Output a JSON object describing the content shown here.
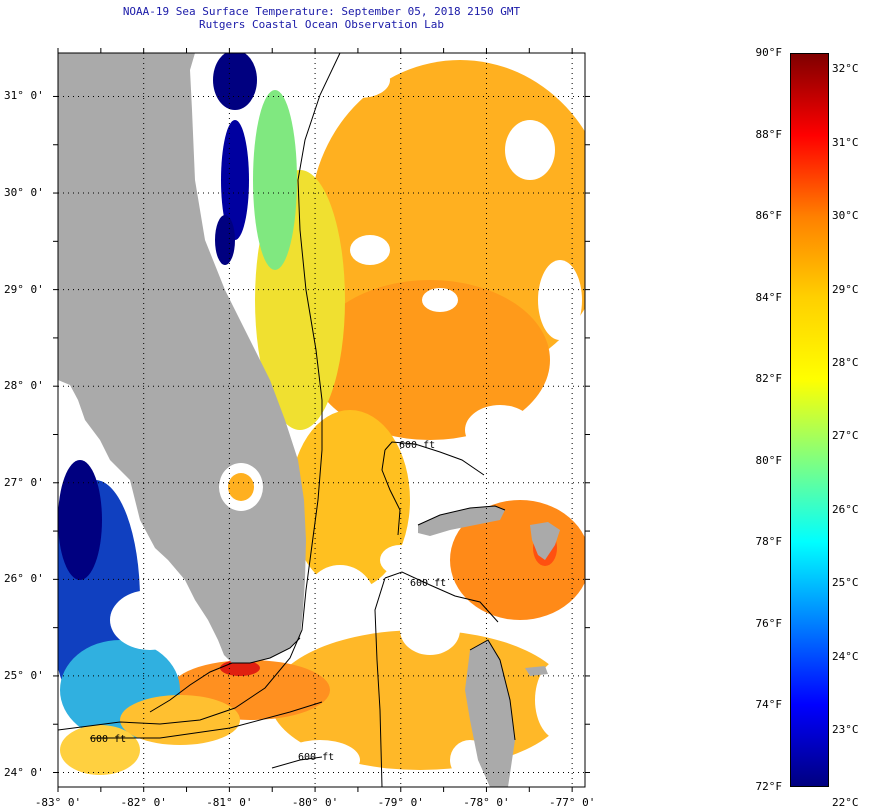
{
  "header": {
    "title_line1": "NOAA-19 Sea Surface Temperature:  September 05, 2018 2150 GMT",
    "title_line2": "Rutgers Coastal Ocean Observation Lab"
  },
  "map": {
    "lon_range": [
      -83,
      -76.85
    ],
    "lat_range": [
      23.85,
      31.45
    ],
    "lat_labels": [
      {
        "lat": 31,
        "text": "31° 0'"
      },
      {
        "lat": 30,
        "text": "30° 0'"
      },
      {
        "lat": 29,
        "text": "29° 0'"
      },
      {
        "lat": 28,
        "text": "28° 0'"
      },
      {
        "lat": 27,
        "text": "27° 0'"
      },
      {
        "lat": 26,
        "text": "26° 0'"
      },
      {
        "lat": 25,
        "text": "25° 0'"
      },
      {
        "lat": 24,
        "text": "24° 0'"
      }
    ],
    "lon_labels": [
      {
        "lon": -83,
        "text": "-83° 0'"
      },
      {
        "lon": -82,
        "text": "-82° 0'"
      },
      {
        "lon": -81,
        "text": "-81° 0'"
      },
      {
        "lon": -80,
        "text": "-80° 0'"
      },
      {
        "lon": -79,
        "text": "-79° 0'"
      },
      {
        "lon": -78,
        "text": "-78° 0'"
      },
      {
        "lon": -77,
        "text": "-77° 0'"
      }
    ],
    "contour_label": "600 ft",
    "land_color": "#aaaaaa",
    "cloud_color": "#ffffff"
  },
  "colorbar": {
    "range_f": [
      72,
      90
    ],
    "colors_top_to_bottom": [
      "#800000",
      "#ff0000",
      "#ff8000",
      "#ffd000",
      "#ffff00",
      "#80ff80",
      "#00ffff",
      "#0080ff",
      "#0000ff",
      "#000080"
    ],
    "fahrenheit": [
      {
        "value": 90,
        "text": "90°F"
      },
      {
        "value": 88,
        "text": "88°F"
      },
      {
        "value": 86,
        "text": "86°F"
      },
      {
        "value": 84,
        "text": "84°F"
      },
      {
        "value": 82,
        "text": "82°F"
      },
      {
        "value": 80,
        "text": "80°F"
      },
      {
        "value": 78,
        "text": "78°F"
      },
      {
        "value": 76,
        "text": "76°F"
      },
      {
        "value": 74,
        "text": "74°F"
      },
      {
        "value": 72,
        "text": "72°F"
      }
    ],
    "celsius": [
      {
        "value": 32,
        "text": "32°C"
      },
      {
        "value": 31,
        "text": "31°C"
      },
      {
        "value": 30,
        "text": "30°C"
      },
      {
        "value": 29,
        "text": "29°C"
      },
      {
        "value": 28,
        "text": "28°C"
      },
      {
        "value": 27,
        "text": "27°C"
      },
      {
        "value": 26,
        "text": "26°C"
      },
      {
        "value": 25,
        "text": "25°C"
      },
      {
        "value": 24,
        "text": "24°C"
      },
      {
        "value": 23,
        "text": "23°C"
      },
      {
        "value": 22,
        "text": "22°C"
      }
    ]
  }
}
